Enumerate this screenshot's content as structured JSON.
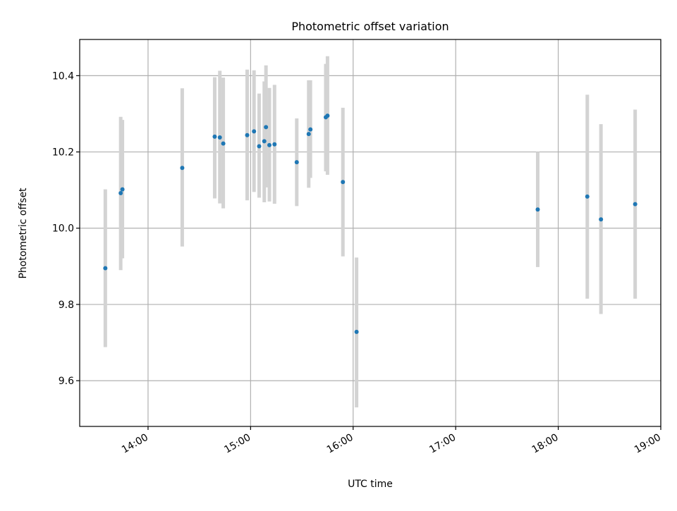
{
  "chart_data": {
    "type": "scatter",
    "title": "Photometric offset variation",
    "xlabel": "UTC time",
    "ylabel": "Photometric offset",
    "x_axis_type": "time",
    "xlim": [
      "13:20",
      "19:00"
    ],
    "ylim": [
      9.48,
      10.495
    ],
    "x_ticks": [
      "14:00",
      "15:00",
      "16:00",
      "17:00",
      "18:00",
      "19:00"
    ],
    "y_ticks": [
      9.6,
      9.8,
      10.0,
      10.2,
      10.4
    ],
    "y_tick_labels": [
      "9.6",
      "9.8",
      "10.0",
      "10.2",
      "10.4"
    ],
    "grid": true,
    "point_color": "#1f77b4",
    "errorbar_color": "#d3d3d3",
    "points": [
      {
        "x": "13:35",
        "y": 9.895,
        "ylow": 9.688,
        "yhigh": 10.102
      },
      {
        "x": "13:44",
        "y": 10.092,
        "ylow": 9.89,
        "yhigh": 10.292
      },
      {
        "x": "13:45",
        "y": 10.102,
        "ylow": 9.921,
        "yhigh": 10.284
      },
      {
        "x": "14:20",
        "y": 10.158,
        "ylow": 9.952,
        "yhigh": 10.367
      },
      {
        "x": "14:39",
        "y": 10.24,
        "ylow": 10.078,
        "yhigh": 10.396
      },
      {
        "x": "14:42",
        "y": 10.238,
        "ylow": 10.065,
        "yhigh": 10.413
      },
      {
        "x": "14:44",
        "y": 10.222,
        "ylow": 10.052,
        "yhigh": 10.395
      },
      {
        "x": "14:58",
        "y": 10.244,
        "ylow": 10.073,
        "yhigh": 10.416
      },
      {
        "x": "15:02",
        "y": 10.254,
        "ylow": 10.095,
        "yhigh": 10.414
      },
      {
        "x": "15:05",
        "y": 10.215,
        "ylow": 10.08,
        "yhigh": 10.353
      },
      {
        "x": "15:08",
        "y": 10.228,
        "ylow": 10.068,
        "yhigh": 10.385
      },
      {
        "x": "15:09",
        "y": 10.265,
        "ylow": 10.107,
        "yhigh": 10.427
      },
      {
        "x": "15:11",
        "y": 10.218,
        "ylow": 10.07,
        "yhigh": 10.368
      },
      {
        "x": "15:14",
        "y": 10.22,
        "ylow": 10.064,
        "yhigh": 10.376
      },
      {
        "x": "15:27",
        "y": 10.173,
        "ylow": 10.058,
        "yhigh": 10.288
      },
      {
        "x": "15:34",
        "y": 10.247,
        "ylow": 10.106,
        "yhigh": 10.388
      },
      {
        "x": "15:35",
        "y": 10.259,
        "ylow": 10.132,
        "yhigh": 10.388
      },
      {
        "x": "15:44",
        "y": 10.291,
        "ylow": 10.149,
        "yhigh": 10.431
      },
      {
        "x": "15:45",
        "y": 10.295,
        "ylow": 10.14,
        "yhigh": 10.451
      },
      {
        "x": "15:54",
        "y": 10.121,
        "ylow": 9.926,
        "yhigh": 10.316
      },
      {
        "x": "16:02",
        "y": 9.728,
        "ylow": 9.53,
        "yhigh": 9.923
      },
      {
        "x": "17:48",
        "y": 10.049,
        "ylow": 9.898,
        "yhigh": 10.2
      },
      {
        "x": "18:17",
        "y": 10.083,
        "ylow": 9.815,
        "yhigh": 10.35
      },
      {
        "x": "18:25",
        "y": 10.023,
        "ylow": 9.775,
        "yhigh": 10.273
      },
      {
        "x": "18:45",
        "y": 10.063,
        "ylow": 9.815,
        "yhigh": 10.311
      }
    ]
  }
}
